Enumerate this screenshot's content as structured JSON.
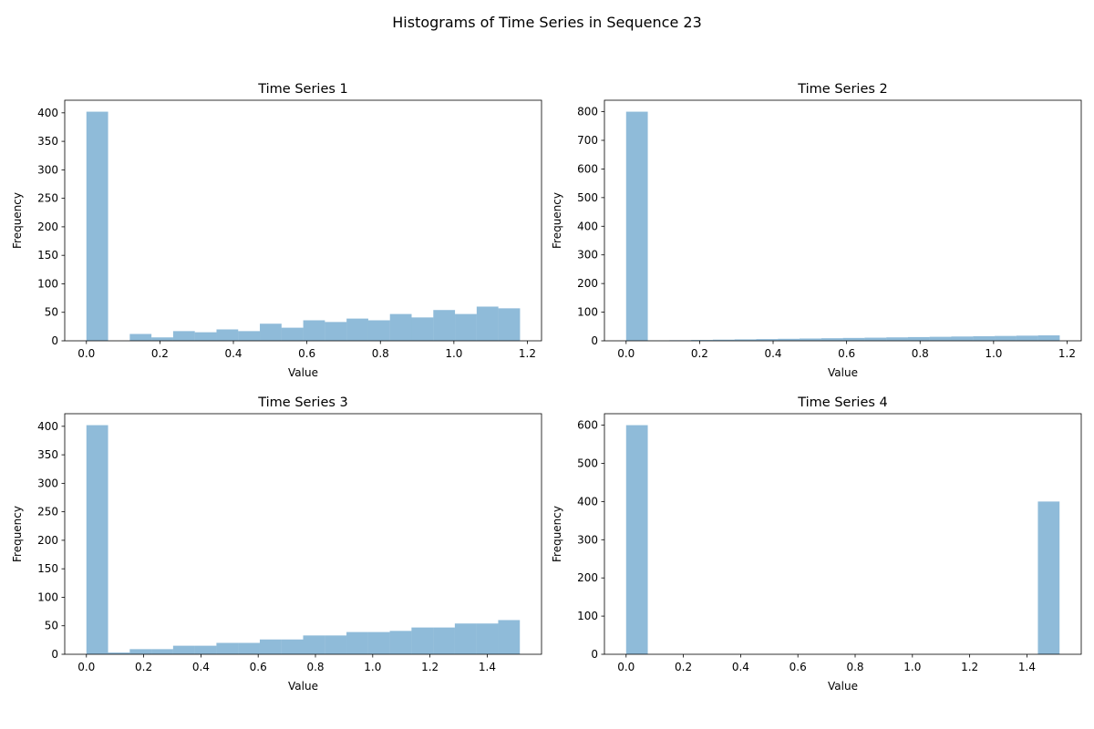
{
  "figure": {
    "title": "Histograms of Time Series in Sequence 23"
  },
  "colors": {
    "bar": "#1f77b4",
    "bar_opacity": 0.5,
    "axis": "#000000"
  },
  "chart_data": [
    {
      "type": "bar",
      "title": "Time Series 1",
      "xlabel": "Value",
      "ylabel": "Frequency",
      "xlim": [
        -0.059,
        1.2385
      ],
      "ylim": [
        0,
        422.1
      ],
      "xticks": [
        0.0,
        0.2,
        0.4,
        0.6,
        0.8,
        1.0,
        1.2
      ],
      "xtick_labels": [
        "0.0",
        "0.2",
        "0.4",
        "0.6",
        "0.8",
        "1.0",
        "1.2"
      ],
      "yticks": [
        0,
        50,
        100,
        150,
        200,
        250,
        300,
        350,
        400
      ],
      "ytick_labels": [
        "0",
        "50",
        "100",
        "150",
        "200",
        "250",
        "300",
        "350",
        "400"
      ],
      "bin_edges": [
        0.0,
        0.059,
        0.118,
        0.177,
        0.236,
        0.295,
        0.354,
        0.413,
        0.472,
        0.531,
        0.59,
        0.649,
        0.708,
        0.767,
        0.826,
        0.885,
        0.944,
        1.003,
        1.062,
        1.121,
        1.18
      ],
      "counts": [
        402,
        0,
        12,
        6,
        17,
        15,
        20,
        17,
        30,
        23,
        36,
        33,
        39,
        36,
        47,
        41,
        54,
        47,
        60,
        57
      ]
    },
    {
      "type": "bar",
      "title": "Time Series 2",
      "xlabel": "Value",
      "ylabel": "Frequency",
      "xlim": [
        -0.059,
        1.2385
      ],
      "ylim": [
        0,
        840
      ],
      "xticks": [
        0.0,
        0.2,
        0.4,
        0.6,
        0.8,
        1.0,
        1.2
      ],
      "xtick_labels": [
        "0.0",
        "0.2",
        "0.4",
        "0.6",
        "0.8",
        "1.0",
        "1.2"
      ],
      "yticks": [
        0,
        100,
        200,
        300,
        400,
        500,
        600,
        700,
        800
      ],
      "ytick_labels": [
        "0",
        "100",
        "200",
        "300",
        "400",
        "500",
        "600",
        "700",
        "800"
      ],
      "bin_edges": [
        0.0,
        0.059,
        0.118,
        0.177,
        0.236,
        0.295,
        0.354,
        0.413,
        0.472,
        0.531,
        0.59,
        0.649,
        0.708,
        0.767,
        0.826,
        0.885,
        0.944,
        1.003,
        1.062,
        1.121,
        1.18
      ],
      "counts": [
        800,
        1,
        2,
        3,
        4,
        5,
        6,
        7,
        8,
        9,
        10,
        11,
        12,
        13,
        14,
        15,
        16,
        17,
        18,
        19
      ]
    },
    {
      "type": "bar",
      "title": "Time Series 3",
      "xlabel": "Value",
      "ylabel": "Frequency",
      "xlim": [
        -0.0757,
        1.5897
      ],
      "ylim": [
        0,
        422.1
      ],
      "xticks": [
        0.0,
        0.2,
        0.4,
        0.6,
        0.8,
        1.0,
        1.2,
        1.4
      ],
      "xtick_labels": [
        "0.0",
        "0.2",
        "0.4",
        "0.6",
        "0.8",
        "1.0",
        "1.2",
        "1.4"
      ],
      "yticks": [
        0,
        50,
        100,
        150,
        200,
        250,
        300,
        350,
        400
      ],
      "ytick_labels": [
        "0",
        "50",
        "100",
        "150",
        "200",
        "250",
        "300",
        "350",
        "400"
      ],
      "bin_edges": [
        0.0,
        0.0757,
        0.1514,
        0.2271,
        0.3028,
        0.3785,
        0.4542,
        0.5299,
        0.6056,
        0.6813,
        0.757,
        0.8327,
        0.9084,
        0.9841,
        1.0598,
        1.1355,
        1.2112,
        1.2869,
        1.3626,
        1.4383,
        1.514
      ],
      "counts": [
        402,
        3,
        9,
        9,
        15,
        15,
        20,
        20,
        26,
        26,
        33,
        33,
        39,
        39,
        41,
        47,
        47,
        54,
        54,
        60
      ]
    },
    {
      "type": "bar",
      "title": "Time Series 4",
      "xlabel": "Value",
      "ylabel": "Frequency",
      "xlim": [
        -0.0757,
        1.5897
      ],
      "ylim": [
        0,
        630
      ],
      "xticks": [
        0.0,
        0.2,
        0.4,
        0.6,
        0.8,
        1.0,
        1.2,
        1.4
      ],
      "xtick_labels": [
        "0.0",
        "0.2",
        "0.4",
        "0.6",
        "0.8",
        "1.0",
        "1.2",
        "1.4"
      ],
      "yticks": [
        0,
        100,
        200,
        300,
        400,
        500,
        600
      ],
      "ytick_labels": [
        "0",
        "100",
        "200",
        "300",
        "400",
        "500",
        "600"
      ],
      "bin_edges": [
        0.0,
        0.0757,
        0.1514,
        0.2271,
        0.3028,
        0.3785,
        0.4542,
        0.5299,
        0.6056,
        0.6813,
        0.757,
        0.8327,
        0.9084,
        0.9841,
        1.0598,
        1.1355,
        1.2112,
        1.2869,
        1.3626,
        1.4383,
        1.514
      ],
      "counts": [
        600,
        0,
        0,
        0,
        0,
        0,
        0,
        0,
        0,
        0,
        0,
        0,
        0,
        0,
        0,
        0,
        0,
        0,
        0,
        400
      ]
    }
  ]
}
